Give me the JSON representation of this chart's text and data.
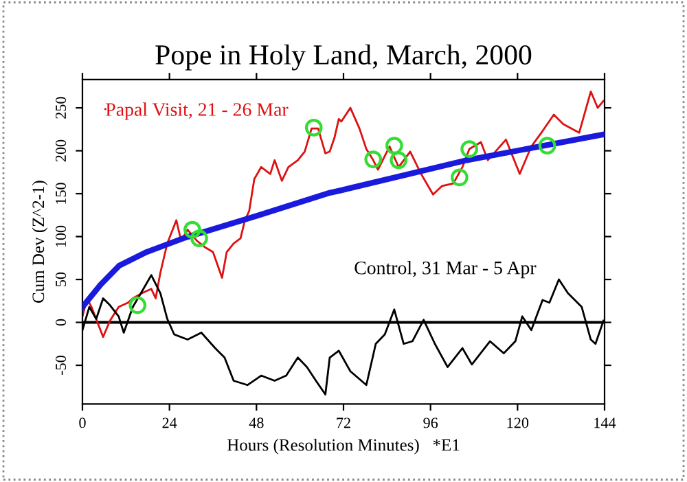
{
  "chart_data": {
    "type": "line",
    "title": "Pope in Holy Land, March, 2000",
    "xlabel": "Hours (Resolution Minutes)   *E1",
    "ylabel": "Cum Dev (Z^2-1)",
    "xlim": [
      0,
      144
    ],
    "ylim": [
      -95,
      283
    ],
    "xticks": [
      0,
      24,
      48,
      72,
      96,
      120,
      144
    ],
    "yticks": [
      -50,
      0,
      50,
      100,
      150,
      200,
      250
    ],
    "grid": false,
    "legend": "top left",
    "line_style": "solid",
    "ref_lines": [
      {
        "axis": "y",
        "value": 0,
        "color": "#000000"
      }
    ],
    "series": [
      {
        "name": "Papal Visit, 21 - 26 Mar",
        "color": "#dd1111",
        "marker": "none",
        "x": [
          0,
          1.3,
          2.5,
          5.7,
          7.6,
          10,
          12.6,
          13.9,
          16.4,
          19,
          20.2,
          21.5,
          23.4,
          25.9,
          27.2,
          29,
          31.6,
          34,
          36,
          38.5,
          39.8,
          41.7,
          43.6,
          44.8,
          46,
          47.4,
          49.3,
          51.8,
          53,
          55,
          56.8,
          59.4,
          61.3,
          63.2,
          65,
          67,
          68.2,
          69.5,
          70.7,
          71.4,
          73.9,
          76.4,
          78.3,
          80.2,
          81.5,
          84.7,
          87.2,
          90.4,
          93.4,
          96.7,
          99.2,
          102.3,
          104.8,
          106.7,
          109.9,
          111.8,
          116.8,
          120.6,
          123.8,
          126.9,
          130,
          132.6,
          137,
          140.2,
          142.1,
          143.7
        ],
        "values": [
          7,
          28,
          18,
          -17,
          2,
          18,
          23,
          28,
          34,
          39,
          28,
          58,
          92,
          119,
          95,
          108,
          95,
          87,
          82,
          52,
          82,
          92,
          98,
          119,
          130,
          167,
          181,
          173,
          189,
          165,
          181,
          189,
          199,
          226,
          226,
          197,
          199,
          215,
          237,
          234,
          250,
          226,
          202,
          189,
          178,
          205,
          181,
          199,
          173,
          149,
          159,
          162,
          181,
          202,
          210,
          189,
          213,
          173,
          205,
          223,
          242,
          231,
          221,
          269,
          250,
          258
        ]
      },
      {
        "name": "Control, 31 Mar - 5 Apr",
        "color": "#000000",
        "marker": "none",
        "x": [
          0,
          1.9,
          3.8,
          5.7,
          7.6,
          10,
          11.4,
          13.9,
          16.4,
          19,
          21.5,
          23.4,
          25.3,
          29,
          32.8,
          36.6,
          39.2,
          41.7,
          45.5,
          49.3,
          53,
          56.2,
          59.4,
          61.9,
          64.4,
          67,
          68.2,
          70.7,
          73.9,
          78.3,
          80.9,
          83.4,
          86,
          88.6,
          91,
          94.1,
          97.2,
          100.7,
          104.8,
          107.4,
          112.4,
          116.2,
          119.4,
          121.3,
          123.8,
          126.9,
          128.8,
          131.4,
          133.9,
          137.7,
          140.2,
          141.5,
          143.7
        ],
        "values": [
          -9,
          18,
          4,
          28,
          20,
          7,
          -12,
          18,
          36,
          55,
          34,
          4,
          -14,
          -20,
          -12,
          -30,
          -41,
          -68,
          -73,
          -62,
          -68,
          -62,
          -41,
          -52,
          -68,
          -84,
          -41,
          -33,
          -57,
          -73,
          -25,
          -14,
          15,
          -25,
          -22,
          3,
          -25,
          -52,
          -30,
          -49,
          -22,
          -36,
          -22,
          7,
          -9,
          26,
          23,
          50,
          34,
          18,
          -20,
          -25,
          2
        ]
      },
      {
        "color": "#1a1add",
        "marker": "none",
        "x": [
          0,
          5,
          10.1,
          17.7,
          27.8,
          48,
          68.2,
          71.4,
          106,
          143.7
        ],
        "values": [
          18,
          44,
          66,
          82,
          98,
          124,
          151,
          154,
          189,
          219
        ]
      },
      {
        "type": "scatter",
        "color": "#33dd33",
        "marker": "circle",
        "x": [
          15.2,
          30.3,
          32.2,
          63.8,
          80.2,
          86,
          87.2,
          104,
          106.7,
          128.2
        ],
        "values": [
          20,
          108,
          98,
          227,
          190,
          206,
          189,
          169,
          202,
          206
        ]
      }
    ]
  }
}
